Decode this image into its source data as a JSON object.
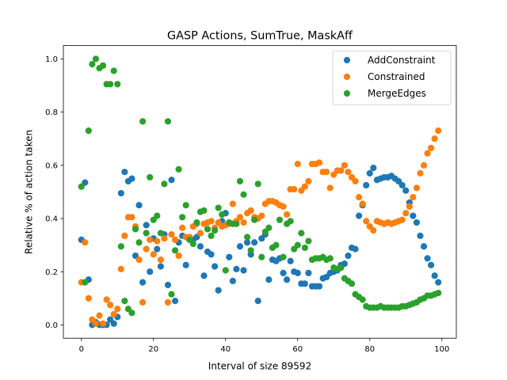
{
  "chart_data": {
    "type": "scatter",
    "title": "GASP Actions, SumTrue, MaskAff",
    "xlabel": "Interval of size 89592",
    "ylabel": "Relative % of action taken",
    "xlim": [
      -5,
      104
    ],
    "ylim": [
      -0.05,
      1.05
    ],
    "x_ticks": [
      0,
      20,
      40,
      60,
      80,
      100
    ],
    "y_ticks": [
      0.0,
      0.2,
      0.4,
      0.6,
      0.8,
      1.0
    ],
    "x_tick_labels": [
      "0",
      "20",
      "40",
      "60",
      "80",
      "100"
    ],
    "y_tick_labels": [
      "0.0",
      "0.2",
      "0.4",
      "0.6",
      "0.8",
      "1.0"
    ],
    "grid": false,
    "legend_position": "top-right",
    "series": [
      {
        "name": "AddConstraint",
        "color": "#1f77b4",
        "x": [
          0,
          1,
          2,
          3,
          4,
          5,
          6,
          7,
          8,
          9,
          10,
          11,
          12,
          13,
          14,
          15,
          16,
          17,
          18,
          19,
          20,
          21,
          22,
          23,
          24,
          25,
          26,
          27,
          28,
          29,
          30,
          31,
          32,
          33,
          34,
          35,
          36,
          37,
          38,
          39,
          40,
          41,
          42,
          43,
          44,
          45,
          46,
          47,
          48,
          49,
          50,
          51,
          52,
          53,
          54,
          55,
          56,
          57,
          58,
          59,
          60,
          61,
          62,
          63,
          64,
          65,
          66,
          67,
          68,
          69,
          70,
          71,
          72,
          73,
          74,
          75,
          76,
          77,
          78,
          79,
          80,
          81,
          82,
          83,
          84,
          85,
          86,
          87,
          88,
          89,
          90,
          91,
          92,
          93,
          94,
          95,
          96,
          97,
          98,
          99
        ],
        "y": [
          0.32,
          0.535,
          0.17,
          0.0,
          0.01,
          0.0,
          0.0,
          0.0,
          0.02,
          0.005,
          0.03,
          0.495,
          0.575,
          0.54,
          0.55,
          0.26,
          0.45,
          0.16,
          0.375,
          0.2,
          0.325,
          0.285,
          0.22,
          0.34,
          0.15,
          0.545,
          0.09,
          0.31,
          0.335,
          0.225,
          0.33,
          0.32,
          0.33,
          0.295,
          0.185,
          0.275,
          0.265,
          0.22,
          0.13,
          0.39,
          0.42,
          0.255,
          0.165,
          0.21,
          0.295,
          0.205,
          0.31,
          0.265,
          0.31,
          0.09,
          0.325,
          0.34,
          0.17,
          0.245,
          0.24,
          0.25,
          0.195,
          0.17,
          0.24,
          0.2,
          0.195,
          0.155,
          0.155,
          0.195,
          0.145,
          0.145,
          0.145,
          0.175,
          0.18,
          0.195,
          0.2,
          0.205,
          0.225,
          0.23,
          0.26,
          0.29,
          0.285,
          0.41,
          0.45,
          0.525,
          0.57,
          0.59,
          0.545,
          0.55,
          0.555,
          0.555,
          0.56,
          0.55,
          0.54,
          0.525,
          0.505,
          0.46,
          0.41,
          0.385,
          0.335,
          0.295,
          0.25,
          0.225,
          0.185,
          0.16
        ]
      },
      {
        "name": "Constrained",
        "color": "#ff7f0e",
        "x": [
          0,
          1,
          2,
          3,
          4,
          5,
          6,
          7,
          8,
          9,
          10,
          11,
          12,
          13,
          14,
          15,
          16,
          17,
          18,
          19,
          20,
          21,
          22,
          23,
          24,
          25,
          26,
          27,
          28,
          29,
          30,
          31,
          32,
          33,
          34,
          35,
          36,
          37,
          38,
          39,
          40,
          41,
          42,
          43,
          44,
          45,
          46,
          47,
          48,
          49,
          50,
          51,
          52,
          53,
          54,
          55,
          56,
          57,
          58,
          59,
          60,
          61,
          62,
          63,
          64,
          65,
          66,
          67,
          68,
          69,
          70,
          71,
          72,
          73,
          74,
          75,
          76,
          77,
          78,
          79,
          80,
          81,
          82,
          83,
          84,
          85,
          86,
          87,
          88,
          89,
          90,
          91,
          92,
          93,
          94,
          95,
          96,
          97,
          98,
          99
        ],
        "y": [
          0.16,
          0.31,
          0.1,
          0.02,
          0.005,
          0.035,
          0.005,
          0.095,
          0.075,
          0.04,
          0.06,
          0.21,
          0.335,
          0.405,
          0.405,
          0.37,
          0.245,
          0.085,
          0.285,
          0.32,
          0.265,
          0.315,
          0.245,
          0.325,
          0.085,
          0.34,
          0.32,
          0.26,
          0.365,
          0.33,
          0.33,
          0.37,
          0.38,
          0.345,
          0.38,
          0.385,
          0.39,
          0.365,
          0.385,
          0.37,
          0.375,
          0.38,
          0.455,
          0.39,
          0.405,
          0.385,
          0.42,
          0.43,
          0.405,
          0.4,
          0.41,
          0.455,
          0.465,
          0.465,
          0.46,
          0.45,
          0.445,
          0.415,
          0.51,
          0.51,
          0.605,
          0.505,
          0.52,
          0.54,
          0.605,
          0.605,
          0.61,
          0.575,
          0.575,
          0.515,
          0.565,
          0.58,
          0.58,
          0.6,
          0.575,
          0.555,
          0.54,
          0.48,
          0.455,
          0.39,
          0.37,
          0.355,
          0.39,
          0.385,
          0.38,
          0.385,
          0.38,
          0.385,
          0.39,
          0.395,
          0.42,
          0.445,
          0.48,
          0.515,
          0.57,
          0.6,
          0.645,
          0.665,
          0.7,
          0.73
        ]
      },
      {
        "name": "MergeEdges",
        "color": "#2ca02c",
        "x": [
          0,
          1,
          2,
          3,
          4,
          5,
          6,
          7,
          8,
          9,
          10,
          11,
          12,
          13,
          14,
          15,
          16,
          17,
          18,
          19,
          20,
          21,
          22,
          23,
          24,
          25,
          26,
          27,
          28,
          29,
          30,
          31,
          32,
          33,
          34,
          35,
          36,
          37,
          38,
          39,
          40,
          41,
          42,
          43,
          44,
          45,
          46,
          47,
          48,
          49,
          50,
          51,
          52,
          53,
          54,
          55,
          56,
          57,
          58,
          59,
          60,
          61,
          62,
          63,
          64,
          65,
          66,
          67,
          68,
          69,
          70,
          71,
          72,
          73,
          74,
          75,
          76,
          77,
          78,
          79,
          80,
          81,
          82,
          83,
          84,
          85,
          86,
          87,
          88,
          89,
          90,
          91,
          92,
          93,
          94,
          95,
          96,
          97,
          98,
          99
        ],
        "y": [
          0.52,
          0.16,
          0.73,
          0.98,
          1.0,
          0.965,
          0.975,
          0.905,
          0.905,
          0.955,
          0.905,
          0.295,
          0.09,
          0.06,
          0.045,
          0.36,
          0.31,
          0.765,
          0.345,
          0.555,
          0.395,
          0.41,
          0.345,
          0.53,
          0.765,
          0.115,
          0.28,
          0.585,
          0.405,
          0.45,
          0.32,
          0.305,
          0.385,
          0.425,
          0.43,
          0.36,
          0.335,
          0.355,
          0.44,
          0.415,
          0.205,
          0.385,
          0.38,
          0.38,
          0.54,
          0.49,
          0.33,
          0.28,
          0.395,
          0.53,
          0.255,
          0.35,
          0.365,
          0.29,
          0.3,
          0.395,
          0.255,
          0.38,
          0.39,
          0.285,
          0.3,
          0.345,
          0.29,
          0.315,
          0.245,
          0.25,
          0.25,
          0.255,
          0.245,
          0.25,
          0.215,
          0.21,
          0.215,
          0.175,
          0.165,
          0.155,
          0.115,
          0.105,
          0.095,
          0.07,
          0.065,
          0.065,
          0.065,
          0.07,
          0.065,
          0.065,
          0.065,
          0.065,
          0.065,
          0.07,
          0.07,
          0.075,
          0.08,
          0.085,
          0.095,
          0.1,
          0.11,
          0.11,
          0.115,
          0.12
        ]
      }
    ]
  }
}
